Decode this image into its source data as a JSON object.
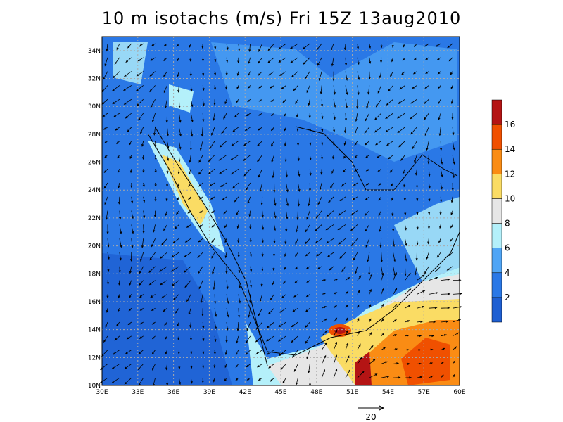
{
  "chart_data": {
    "type": "map",
    "title": "10 m isotachs (m/s) Fri 15Z 13aug2010",
    "xlim": [
      30,
      60
    ],
    "ylim": [
      10,
      35
    ],
    "xticks": [
      {
        "value": 30,
        "label": "30E"
      },
      {
        "value": 33,
        "label": "33E"
      },
      {
        "value": 36,
        "label": "36E"
      },
      {
        "value": 39,
        "label": "39E"
      },
      {
        "value": 42,
        "label": "42E"
      },
      {
        "value": 45,
        "label": "45E"
      },
      {
        "value": 48,
        "label": "48E"
      },
      {
        "value": 51,
        "label": "51E"
      },
      {
        "value": 54,
        "label": "54E"
      },
      {
        "value": 57,
        "label": "57E"
      },
      {
        "value": 60,
        "label": "60E"
      }
    ],
    "yticks": [
      {
        "value": 10,
        "label": "10N"
      },
      {
        "value": 12,
        "label": "12N"
      },
      {
        "value": 14,
        "label": "14N"
      },
      {
        "value": 16,
        "label": "16N"
      },
      {
        "value": 18,
        "label": "18N"
      },
      {
        "value": 20,
        "label": "20N"
      },
      {
        "value": 22,
        "label": "22N"
      },
      {
        "value": 24,
        "label": "24N"
      },
      {
        "value": 26,
        "label": "26N"
      },
      {
        "value": 28,
        "label": "28N"
      },
      {
        "value": 30,
        "label": "30N"
      },
      {
        "value": 32,
        "label": "32N"
      },
      {
        "value": 34,
        "label": "34N"
      }
    ],
    "grid": true,
    "colorbar": {
      "levels": [
        2,
        4,
        6,
        8,
        10,
        12,
        14,
        16
      ],
      "colors": [
        "#1e5fd2",
        "#2a78e6",
        "#50a5f5",
        "#b4f0fa",
        "#e6e6e6",
        "#fadc64",
        "#fa8c14",
        "#f05000",
        "#b41414"
      ]
    },
    "reference_vector": 20
  }
}
